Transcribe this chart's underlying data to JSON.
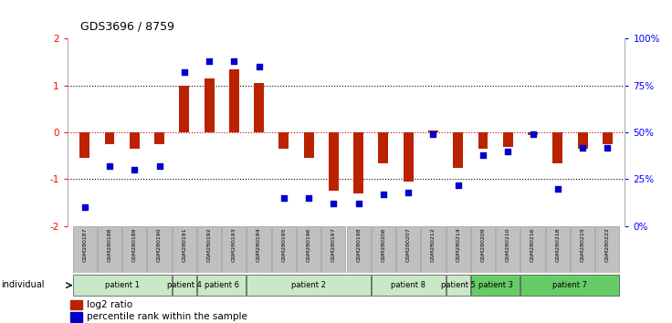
{
  "title": "GDS3696 / 8759",
  "samples": [
    "GSM280187",
    "GSM280188",
    "GSM280189",
    "GSM280190",
    "GSM280191",
    "GSM280192",
    "GSM280193",
    "GSM280194",
    "GSM280195",
    "GSM280196",
    "GSM280197",
    "GSM280198",
    "GSM280206",
    "GSM280207",
    "GSM280212",
    "GSM280214",
    "GSM280209",
    "GSM280210",
    "GSM280216",
    "GSM280218",
    "GSM280219",
    "GSM280222"
  ],
  "log2_ratio": [
    -0.55,
    -0.25,
    -0.35,
    -0.25,
    1.0,
    1.15,
    1.35,
    1.05,
    -0.35,
    -0.55,
    -1.25,
    -1.3,
    -0.65,
    -1.05,
    0.05,
    -0.75,
    -0.35,
    -0.3,
    -0.05,
    -0.65,
    -0.35,
    -0.25
  ],
  "percentile": [
    10,
    32,
    30,
    32,
    82,
    88,
    88,
    85,
    15,
    15,
    12,
    12,
    17,
    18,
    49,
    22,
    38,
    40,
    49,
    20,
    42,
    42
  ],
  "patients": [
    {
      "label": "patient 1",
      "start": 0,
      "end": 4,
      "color": "#c8e8c8"
    },
    {
      "label": "patient 4",
      "start": 4,
      "end": 5,
      "color": "#c8e8c8"
    },
    {
      "label": "patient 6",
      "start": 5,
      "end": 7,
      "color": "#c8e8c8"
    },
    {
      "label": "patient 2",
      "start": 7,
      "end": 12,
      "color": "#c8e8c8"
    },
    {
      "label": "patient 8",
      "start": 12,
      "end": 15,
      "color": "#c8e8c8"
    },
    {
      "label": "patient 5",
      "start": 15,
      "end": 16,
      "color": "#c8e8c8"
    },
    {
      "label": "patient 3",
      "start": 16,
      "end": 18,
      "color": "#66cc66"
    },
    {
      "label": "patient 7",
      "start": 18,
      "end": 22,
      "color": "#66cc66"
    }
  ],
  "bar_color": "#bb2200",
  "dot_color": "#0000cc",
  "ylim_left": [
    -2,
    2
  ],
  "yticks_left": [
    -2,
    -1,
    0,
    1,
    2
  ],
  "yticks_right": [
    0,
    25,
    50,
    75,
    100
  ],
  "ytick_labels_right": [
    "0%",
    "25%",
    "50%",
    "75%",
    "100%"
  ],
  "bg_color": "#ffffff",
  "sample_bg_color": "#c0c0c0"
}
